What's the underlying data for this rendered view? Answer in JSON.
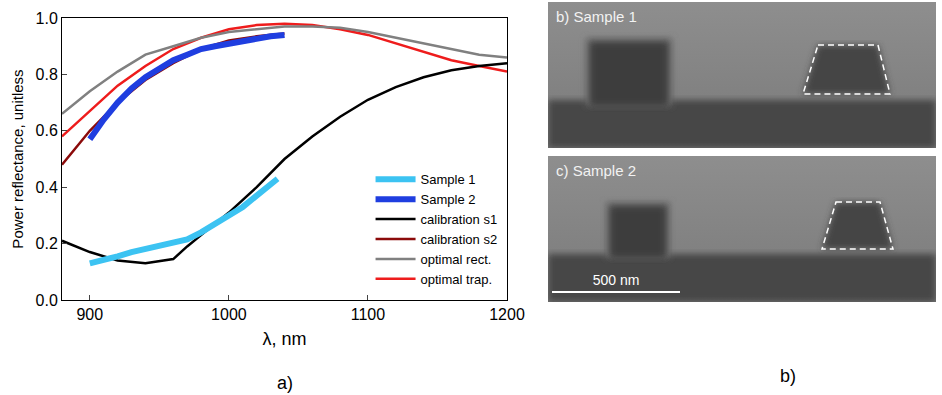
{
  "chart_data": {
    "type": "line",
    "x_label": "λ, nm",
    "y_label": "Power reflectance, unitless",
    "xlim": [
      880,
      1200
    ],
    "xticks": [
      900,
      1000,
      1100,
      1200
    ],
    "ylim": [
      0,
      1
    ],
    "yticks": [
      {
        "value": 0,
        "label": "0.0"
      },
      0.2,
      0.4,
      0.6,
      0.8,
      {
        "value": 1,
        "label": "1.0"
      }
    ],
    "grid": false,
    "legend": "bottom right",
    "annotations": [
      "a)"
    ],
    "series": [
      {
        "name": "Sample 1",
        "color": "#3cc3f2",
        "line_style": "thick",
        "x": [
          900,
          910,
          920,
          930,
          940,
          950,
          960,
          970,
          980,
          990,
          1000,
          1010,
          1020,
          1030,
          1035
        ],
        "values": [
          0.13,
          0.14,
          0.155,
          0.17,
          0.18,
          0.19,
          0.2,
          0.215,
          0.24,
          0.27,
          0.3,
          0.33,
          0.37,
          0.41,
          0.43
        ]
      },
      {
        "name": "Sample 2",
        "color": "#1f3ee0",
        "line_style": "thick",
        "x": [
          900,
          910,
          920,
          930,
          940,
          950,
          960,
          970,
          980,
          990,
          1000,
          1010,
          1020,
          1030,
          1040
        ],
        "values": [
          0.57,
          0.64,
          0.7,
          0.75,
          0.79,
          0.82,
          0.85,
          0.87,
          0.89,
          0.9,
          0.91,
          0.92,
          0.93,
          0.935,
          0.94
        ]
      },
      {
        "name": "calibration s1",
        "color": "#000000",
        "line_style": "solid",
        "x": [
          880,
          900,
          920,
          940,
          960,
          970,
          980,
          1000,
          1020,
          1040,
          1060,
          1080,
          1100,
          1120,
          1140,
          1160,
          1180,
          1200
        ],
        "values": [
          0.21,
          0.17,
          0.14,
          0.13,
          0.145,
          0.19,
          0.23,
          0.31,
          0.4,
          0.5,
          0.58,
          0.65,
          0.71,
          0.755,
          0.79,
          0.815,
          0.83,
          0.84
        ]
      },
      {
        "name": "calibration s2",
        "color": "#8b0a0a",
        "line_style": "solid",
        "x": [
          880,
          900,
          920,
          940,
          960,
          980,
          1000,
          1020,
          1040
        ],
        "values": [
          0.48,
          0.6,
          0.7,
          0.78,
          0.84,
          0.89,
          0.92,
          0.935,
          0.945
        ]
      },
      {
        "name": "optimal rect.",
        "color": "#808080",
        "line_style": "solid",
        "x": [
          880,
          900,
          920,
          940,
          960,
          980,
          1000,
          1020,
          1040,
          1060,
          1080,
          1100,
          1120,
          1140,
          1160,
          1180,
          1200
        ],
        "values": [
          0.66,
          0.74,
          0.81,
          0.87,
          0.9,
          0.93,
          0.95,
          0.96,
          0.97,
          0.97,
          0.965,
          0.95,
          0.93,
          0.91,
          0.89,
          0.87,
          0.86
        ]
      },
      {
        "name": "optimal trap.",
        "color": "#ee1c1c",
        "line_style": "solid",
        "x": [
          880,
          900,
          920,
          940,
          960,
          980,
          1000,
          1020,
          1040,
          1060,
          1080,
          1100,
          1120,
          1140,
          1160,
          1180,
          1200
        ],
        "values": [
          0.58,
          0.67,
          0.76,
          0.83,
          0.89,
          0.93,
          0.96,
          0.975,
          0.98,
          0.975,
          0.96,
          0.94,
          0.91,
          0.88,
          0.85,
          0.83,
          0.81
        ]
      }
    ]
  },
  "images": [
    {
      "label": "b) Sample 1"
    },
    {
      "label": "c) Sample 2",
      "scale_bar": "500 nm"
    }
  ],
  "captions": [
    "b)"
  ]
}
